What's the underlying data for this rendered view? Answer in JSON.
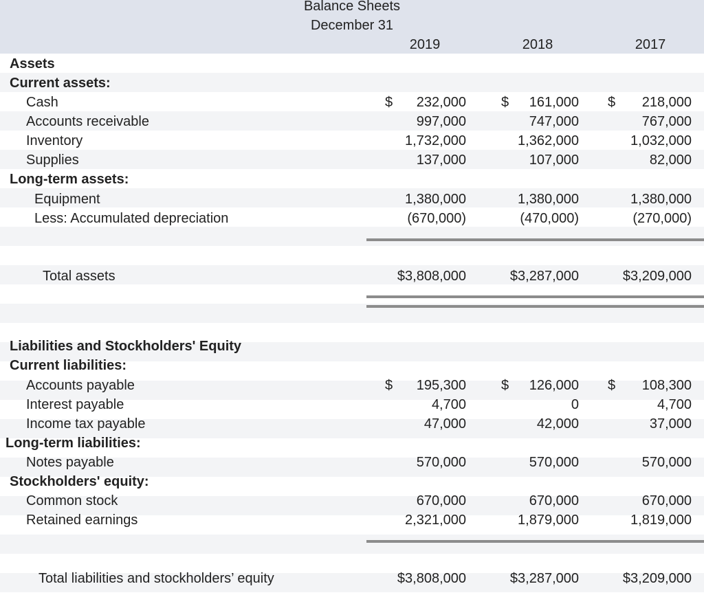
{
  "header": {
    "title": "Balance Sheets",
    "subtitle": "December 31",
    "years": [
      "2019",
      "2018",
      "2017"
    ]
  },
  "rows": [
    {
      "label": "Assets"
    },
    {
      "label": "Current assets:"
    },
    {
      "label": "Cash",
      "currency": "$",
      "values": [
        "232,000",
        "161,000",
        "218,000"
      ]
    },
    {
      "label": "Accounts receivable",
      "values": [
        "997,000",
        "747,000",
        "767,000"
      ]
    },
    {
      "label": "Inventory",
      "values": [
        "1,732,000",
        "1,362,000",
        "1,032,000"
      ]
    },
    {
      "label": "Supplies",
      "values": [
        "137,000",
        "107,000",
        "82,000"
      ]
    },
    {
      "label": "Long-term assets:"
    },
    {
      "label": "Equipment",
      "values": [
        "1,380,000",
        "1,380,000",
        "1,380,000"
      ]
    },
    {
      "label": "Less: Accumulated depreciation",
      "values": [
        "(670,000)",
        "(470,000)",
        "(270,000)"
      ]
    },
    {
      "label": "Total assets",
      "values": [
        "$3,808,000",
        "$3,287,000",
        "$3,209,000"
      ]
    },
    {
      "label": "Liabilities and Stockholders' Equity"
    },
    {
      "label": "Current liabilities:"
    },
    {
      "label": "Accounts payable",
      "currency": "$",
      "values": [
        "195,300",
        "126,000",
        "108,300"
      ]
    },
    {
      "label": "Interest payable",
      "values": [
        "4,700",
        "0",
        "4,700"
      ]
    },
    {
      "label": "Income tax payable",
      "values": [
        "47,000",
        "42,000",
        "37,000"
      ]
    },
    {
      "label": "Long-term liabilities:"
    },
    {
      "label": "Notes payable",
      "values": [
        "570,000",
        "570,000",
        "570,000"
      ]
    },
    {
      "label": "Stockholders' equity:"
    },
    {
      "label": "Common stock",
      "values": [
        "670,000",
        "670,000",
        "670,000"
      ]
    },
    {
      "label": "Retained earnings",
      "values": [
        "2,321,000",
        "1,879,000",
        "1,819,000"
      ]
    },
    {
      "label": "Total liabilities and stockholders’ equity",
      "values": [
        "$3,808,000",
        "$3,287,000",
        "$3,209,000"
      ]
    }
  ]
}
